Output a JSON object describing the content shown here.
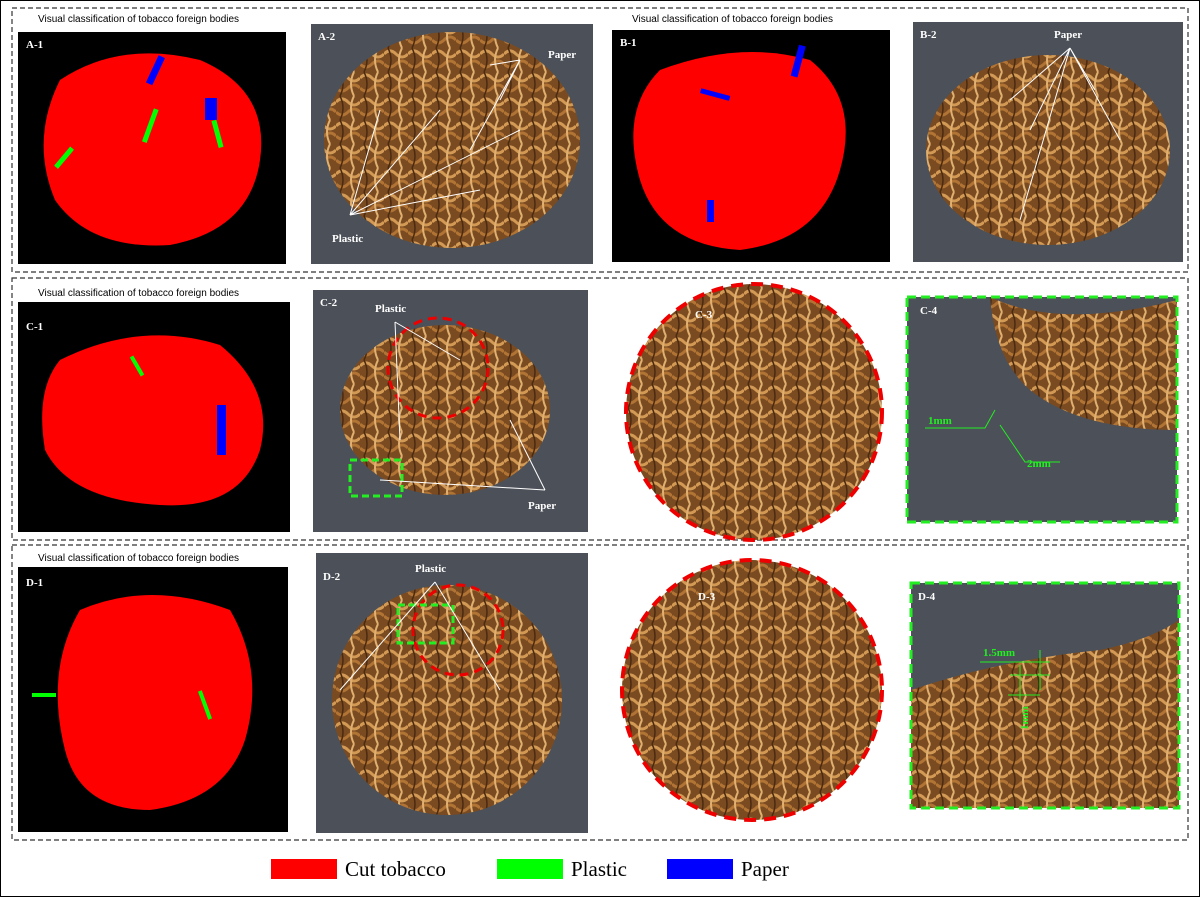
{
  "panels": [
    {
      "label": "A-1",
      "caption": "Visual classification of tobacco foreign bodies"
    },
    {
      "label": "A-2",
      "annotations": [
        "Paper",
        "Plastic"
      ]
    },
    {
      "label": "B-1",
      "caption": "Visual classification of tobacco foreign bodies"
    },
    {
      "label": "B-2",
      "annotations": [
        "Paper"
      ]
    },
    {
      "label": "C-1",
      "caption": "Visual classification of tobacco foreign bodies"
    },
    {
      "label": "C-2",
      "annotations": [
        "Plastic",
        "Paper"
      ]
    },
    {
      "label": "C-3"
    },
    {
      "label": "C-4",
      "annotations": [
        "1mm",
        "2mm"
      ]
    },
    {
      "label": "D-1",
      "caption": "Visual classification of tobacco foreign bodies"
    },
    {
      "label": "D-2",
      "annotations": [
        "Plastic"
      ]
    },
    {
      "label": "D-3"
    },
    {
      "label": "D-4",
      "annotations": [
        "1.5mm",
        "1mm"
      ]
    }
  ],
  "legend": [
    {
      "label": "Cut tobacco",
      "color": "#ff0000"
    },
    {
      "label": "Plastic",
      "color": "#00ff00"
    },
    {
      "label": "Paper",
      "color": "#0000ff"
    }
  ]
}
